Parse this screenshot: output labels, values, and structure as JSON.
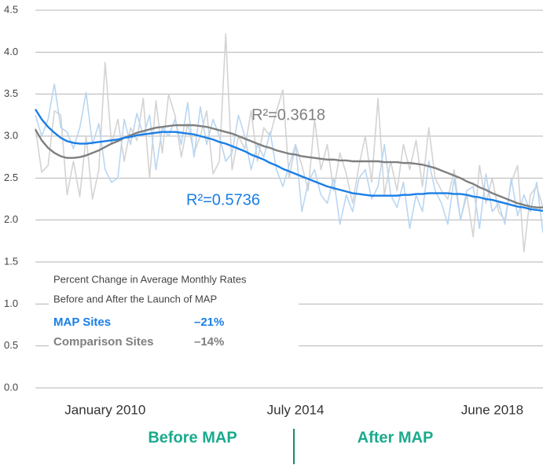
{
  "chart_data": {
    "type": "line",
    "categories": [
      null,
      null,
      null,
      null,
      null,
      null,
      null,
      null,
      null,
      null,
      null,
      "January 2010",
      null,
      null,
      null,
      null,
      null,
      null,
      null,
      null,
      null,
      null,
      null,
      null,
      null,
      null,
      null,
      null,
      null,
      null,
      null,
      null,
      null,
      null,
      null,
      null,
      null,
      null,
      null,
      null,
      null,
      "July 2014",
      null,
      null,
      null,
      null,
      null,
      null,
      null,
      null,
      null,
      null,
      null,
      null,
      null,
      null,
      null,
      null,
      null,
      null,
      null,
      null,
      null,
      null,
      null,
      null,
      null,
      null,
      null,
      null,
      null,
      null,
      "June 2018",
      null,
      null,
      null,
      null,
      null,
      null,
      null,
      null
    ],
    "ylim": [
      0,
      4.5
    ],
    "yticks": [
      {
        "value": 0,
        "label": "0.0"
      },
      0.5,
      {
        "value": 1,
        "label": "1.0"
      },
      1.5,
      {
        "value": 2,
        "label": "2.0"
      },
      2.5,
      {
        "value": 3,
        "label": "3.0"
      },
      3.5,
      {
        "value": 4,
        "label": "4.0"
      },
      4.5
    ],
    "grid": true,
    "series": [
      {
        "color": "#d3d3d3",
        "values": [
          3.1,
          2.57,
          2.65,
          3.3,
          3.25,
          2.3,
          2.7,
          2.28,
          3.0,
          2.25,
          2.6,
          3.88,
          2.9,
          3.2,
          2.7,
          3.1,
          2.95,
          3.45,
          2.5,
          3.42,
          2.8,
          3.5,
          3.25,
          2.75,
          3.15,
          2.8,
          3.0,
          3.3,
          2.55,
          2.7,
          4.22,
          2.6,
          3.0,
          2.85,
          3.3,
          2.7,
          3.1,
          3.0,
          3.3,
          3.55,
          2.5,
          2.9,
          2.65,
          2.35,
          3.2,
          2.6,
          2.9,
          2.35,
          2.8,
          2.55,
          2.2,
          2.65,
          3.0,
          2.45,
          3.45,
          2.3,
          2.7,
          2.35,
          2.9,
          2.6,
          2.95,
          2.4,
          3.1,
          2.5,
          2.35,
          2.25,
          2.6,
          2.0,
          2.3,
          1.8,
          2.65,
          2.2,
          2.5,
          2.1,
          2.0,
          2.45,
          2.65,
          1.62,
          2.3,
          2.4,
          2.15
        ]
      },
      {
        "color": "#b9d6f2",
        "values": [
          3.25,
          3.0,
          3.2,
          3.62,
          3.1,
          3.05,
          2.85,
          3.1,
          3.52,
          2.9,
          3.15,
          2.6,
          2.45,
          2.5,
          3.2,
          2.9,
          3.27,
          3.0,
          3.25,
          2.6,
          3.1,
          3.0,
          3.2,
          2.9,
          3.4,
          2.75,
          3.35,
          2.9,
          3.2,
          3.0,
          2.7,
          2.8,
          3.25,
          3.0,
          2.6,
          2.9,
          2.75,
          3.05,
          2.6,
          2.4,
          2.65,
          2.9,
          2.1,
          2.45,
          2.6,
          2.3,
          2.2,
          2.5,
          1.95,
          2.3,
          2.1,
          2.5,
          2.6,
          2.25,
          2.4,
          2.9,
          2.3,
          2.15,
          2.45,
          1.9,
          2.3,
          2.1,
          2.7,
          2.35,
          2.2,
          1.95,
          2.5,
          2.0,
          2.35,
          2.4,
          1.9,
          2.55,
          2.1,
          2.2,
          1.95,
          2.5,
          2.05,
          2.3,
          2.1,
          2.45,
          1.85
        ]
      },
      {
        "color": "#7f7f7f",
        "label": "R²=0.3618",
        "values": [
          3.08,
          2.95,
          2.86,
          2.8,
          2.76,
          2.74,
          2.74,
          2.75,
          2.77,
          2.8,
          2.83,
          2.87,
          2.91,
          2.94,
          2.98,
          3.01,
          3.04,
          3.06,
          3.08,
          3.1,
          3.11,
          3.12,
          3.13,
          3.13,
          3.13,
          3.13,
          3.12,
          3.11,
          3.09,
          3.07,
          3.05,
          3.03,
          3.0,
          2.97,
          2.94,
          2.91,
          2.88,
          2.86,
          2.83,
          2.81,
          2.79,
          2.78,
          2.76,
          2.75,
          2.74,
          2.73,
          2.72,
          2.72,
          2.71,
          2.71,
          2.7,
          2.7,
          2.7,
          2.7,
          2.7,
          2.69,
          2.69,
          2.69,
          2.68,
          2.68,
          2.67,
          2.66,
          2.64,
          2.62,
          2.59,
          2.56,
          2.53,
          2.5,
          2.46,
          2.43,
          2.39,
          2.36,
          2.32,
          2.29,
          2.26,
          2.23,
          2.2,
          2.18,
          2.16,
          2.15,
          2.15
        ]
      },
      {
        "color": "#1a7ee6",
        "label": "R²=0.5736",
        "values": [
          3.32,
          3.2,
          3.11,
          3.04,
          2.98,
          2.94,
          2.92,
          2.91,
          2.91,
          2.92,
          2.93,
          2.94,
          2.95,
          2.96,
          2.98,
          2.99,
          3.01,
          3.02,
          3.03,
          3.04,
          3.05,
          3.05,
          3.05,
          3.04,
          3.03,
          3.02,
          3.0,
          2.98,
          2.96,
          2.93,
          2.91,
          2.88,
          2.85,
          2.82,
          2.78,
          2.75,
          2.72,
          2.68,
          2.65,
          2.61,
          2.58,
          2.55,
          2.52,
          2.49,
          2.46,
          2.43,
          2.4,
          2.38,
          2.36,
          2.34,
          2.32,
          2.31,
          2.3,
          2.29,
          2.29,
          2.29,
          2.29,
          2.29,
          2.3,
          2.3,
          2.31,
          2.31,
          2.32,
          2.32,
          2.32,
          2.32,
          2.31,
          2.31,
          2.3,
          2.28,
          2.27,
          2.25,
          2.24,
          2.22,
          2.2,
          2.18,
          2.16,
          2.15,
          2.13,
          2.12,
          2.11
        ]
      }
    ],
    "annotation_box": {
      "title_lines": [
        "Percent Change in Average Monthly Rates",
        "Before and After the Launch of MAP"
      ],
      "rows": [
        {
          "name": "MAP Sites",
          "change": "–21%",
          "color": "#1a7ee6"
        },
        {
          "name": "Comparison Sites",
          "change": "–14%",
          "color": "#7f7f7f"
        }
      ]
    },
    "phases": [
      "Before MAP",
      "After MAP"
    ]
  }
}
